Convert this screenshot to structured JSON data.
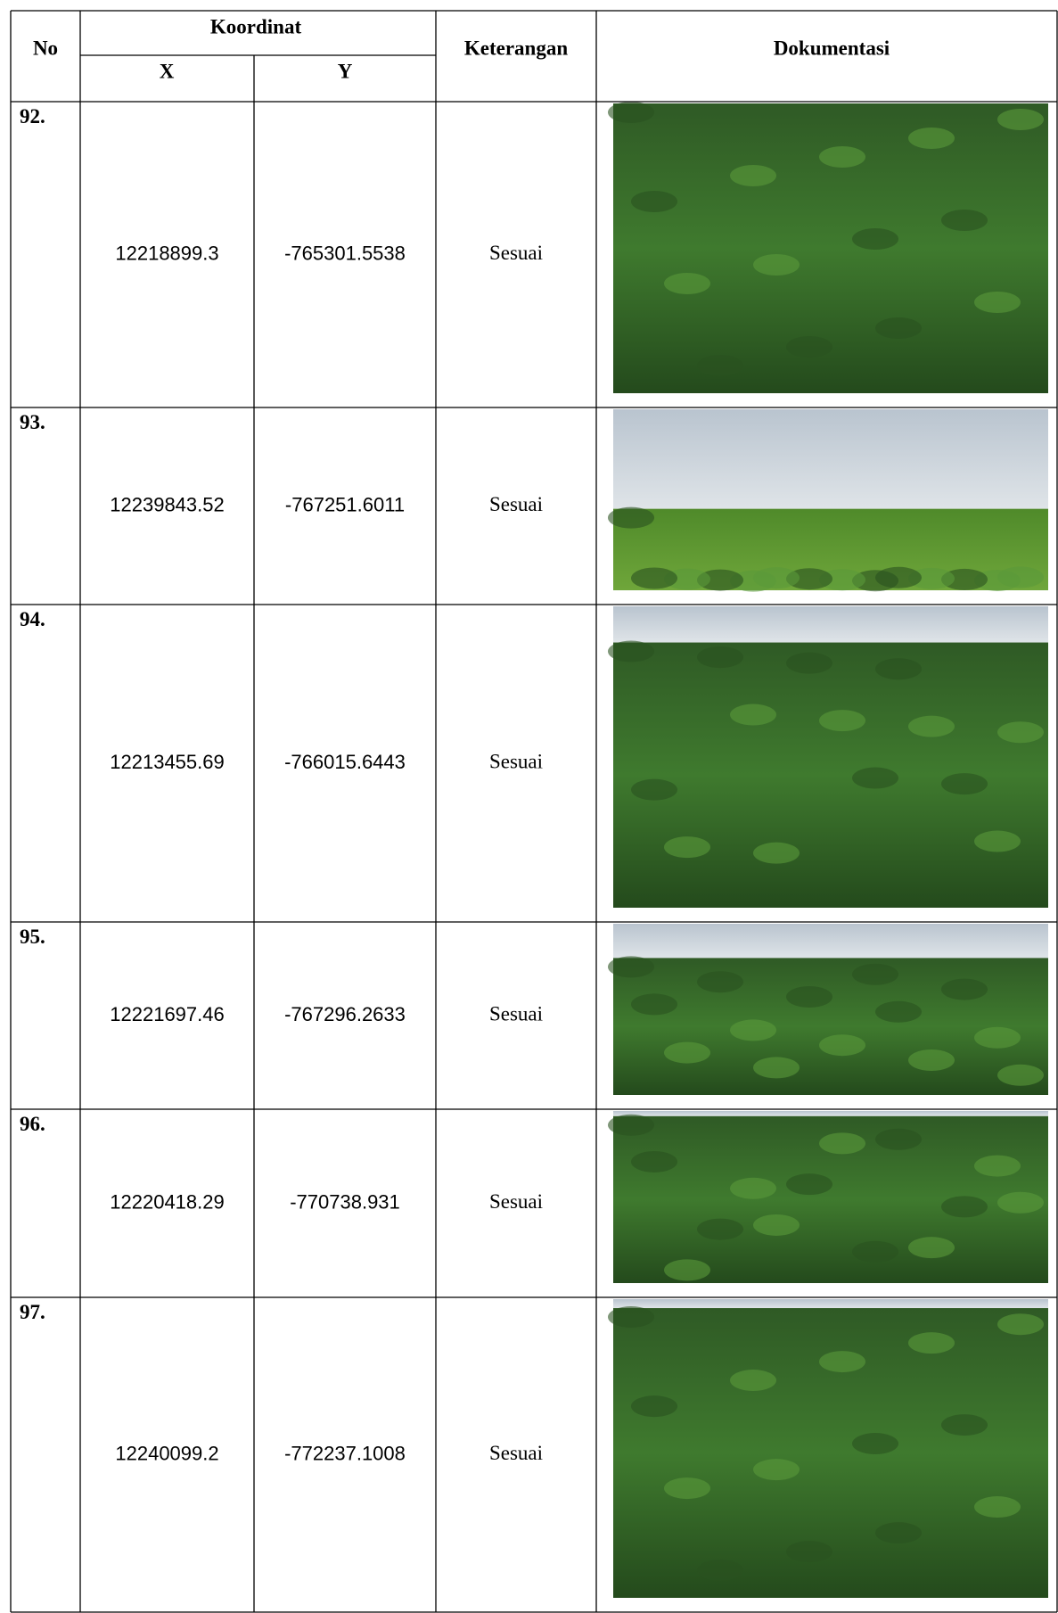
{
  "header": {
    "no": "No",
    "koordinat": "Koordinat",
    "x": "X",
    "y": "Y",
    "keterangan": "Keterangan",
    "dokumentasi": "Dokumentasi"
  },
  "rows": [
    {
      "no": "92.",
      "x": "12218899.3",
      "y": "-765301.5538",
      "keterangan": "Sesuai"
    },
    {
      "no": "93.",
      "x": "12239843.52",
      "y": "-767251.6011",
      "keterangan": "Sesuai"
    },
    {
      "no": "94.",
      "x": "12213455.69",
      "y": "-766015.6443",
      "keterangan": "Sesuai"
    },
    {
      "no": "95.",
      "x": "12221697.46",
      "y": "-767296.2633",
      "keterangan": "Sesuai"
    },
    {
      "no": "96.",
      "x": "12220418.29",
      "y": "-770738.931",
      "keterangan": "Sesuai"
    },
    {
      "no": "97.",
      "x": "12240099.2",
      "y": "-772237.1008",
      "keterangan": "Sesuai"
    }
  ]
}
